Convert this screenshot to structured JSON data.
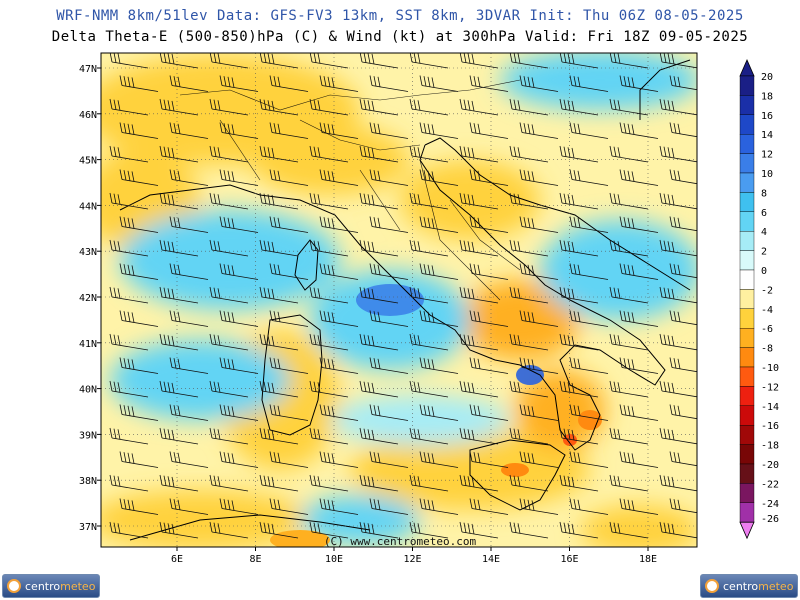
{
  "header": {
    "line1": "WRF-NMM 8km/51lev   Data: GFS-FV3 13km, SST 8km, 3DVAR   Init: Thu 06Z 08-05-2025",
    "line2": "Delta Theta-E (500-850)hPa (C) & Wind (kt) at 300hPa   Valid: Fri 18Z 09-05-2025"
  },
  "map": {
    "lat_labels": [
      "47N",
      "46N",
      "45N",
      "44N",
      "43N",
      "42N",
      "41N",
      "40N",
      "39N",
      "38N",
      "37N"
    ],
    "lon_labels": [
      "6E",
      "8E",
      "10E",
      "12E",
      "14E",
      "16E",
      "18E"
    ],
    "watermark": "(C) www.centrometeo.com"
  },
  "colorbar": {
    "labels": [
      "20",
      "18",
      "16",
      "14",
      "12",
      "10",
      "8",
      "6",
      "4",
      "2",
      "0",
      "-2",
      "-4",
      "-6",
      "-8",
      "-10",
      "-12",
      "-14",
      "-16",
      "-18",
      "-20",
      "-22",
      "-24",
      "-26"
    ],
    "colors": [
      "#1a1f86",
      "#1a2fa8",
      "#1e48c8",
      "#2a62de",
      "#3a7ee8",
      "#4a9cf0",
      "#3fc0ef",
      "#62d4f4",
      "#a6ecf6",
      "#d8fafa",
      "#ffffff",
      "#fff0a0",
      "#ffd23c",
      "#ffb020",
      "#ff8a10",
      "#ff5a10",
      "#ee2010",
      "#cc0a0a",
      "#a00808",
      "#780606",
      "#661018",
      "#7a1660",
      "#a030a8",
      "#ee7ef0"
    ]
  },
  "branding": {
    "name_part1": "centro",
    "name_part2": "meteo"
  }
}
